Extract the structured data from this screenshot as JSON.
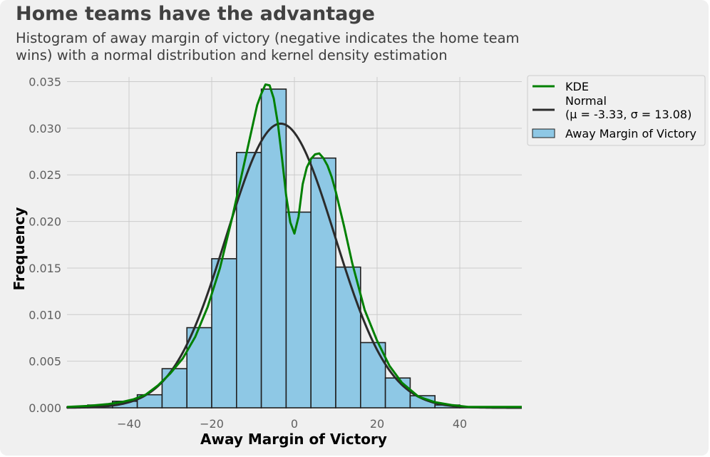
{
  "title": "Home teams have the advantage",
  "subtitle": "Histogram of away margin of victory (negative indicates the home team wins) with a normal distribution and kernel density estimation",
  "colors": {
    "background": "#f0f0f0",
    "bar_fill": "#8ec8e5",
    "bar_edge": "#202020",
    "kde": "#008000",
    "normal": "#2b2b2b",
    "grid": "#cbcbcb"
  },
  "chart_data": {
    "type": "bar",
    "title": "Home teams have the advantage",
    "subtitle": "Histogram of away margin of victory (negative indicates the home team wins) with a normal distribution and kernel density estimation",
    "xlabel": "Away Margin of Victory",
    "ylabel": "Frequency",
    "xlim": [
      -55,
      55
    ],
    "ylim": [
      0,
      0.0355
    ],
    "xticks": [
      -40,
      -20,
      0,
      20,
      40
    ],
    "xtick_labels": [
      "−40",
      "−20",
      "0",
      "20",
      "40"
    ],
    "yticks": [
      0.0,
      0.005,
      0.01,
      0.015,
      0.02,
      0.025,
      0.03,
      0.035
    ],
    "ytick_labels": [
      "0.000",
      "0.005",
      "0.010",
      "0.015",
      "0.020",
      "0.025",
      "0.030",
      "0.035"
    ],
    "grid": true,
    "legend_position": "outside-top-right",
    "bin_edges": [
      -56,
      -50,
      -44,
      -38,
      -32,
      -26,
      -20,
      -14,
      -8,
      -2,
      4,
      10,
      16,
      22,
      28,
      34,
      40,
      46
    ],
    "histogram": {
      "name": "Away Margin of Victory",
      "values": [
        0.0001,
        0.0003,
        0.0007,
        0.0014,
        0.0042,
        0.0086,
        0.016,
        0.0274,
        0.0342,
        0.021,
        0.0268,
        0.0151,
        0.007,
        0.0032,
        0.0013,
        0.0003,
        0.0001
      ]
    },
    "series": [
      {
        "name": "KDE",
        "type": "line",
        "x": [
          -55,
          -50,
          -45,
          -42,
          -39,
          -36,
          -33,
          -30,
          -27,
          -24,
          -21,
          -18,
          -15,
          -12,
          -10,
          -9,
          -8,
          -7,
          -6,
          -5,
          -4,
          -3,
          -2,
          -1,
          0,
          1,
          2,
          3,
          4,
          5,
          6,
          7,
          8,
          9,
          10,
          12,
          14,
          17,
          20,
          23,
          26,
          30,
          34,
          38,
          42,
          46,
          50,
          55
        ],
        "y": [
          0.0001,
          0.0002,
          0.0004,
          0.0006,
          0.0009,
          0.0014,
          0.0024,
          0.0037,
          0.0053,
          0.0076,
          0.0108,
          0.015,
          0.0205,
          0.0265,
          0.0305,
          0.0325,
          0.0337,
          0.0347,
          0.0346,
          0.0332,
          0.0305,
          0.0268,
          0.0228,
          0.0199,
          0.0187,
          0.0205,
          0.024,
          0.0258,
          0.0267,
          0.0272,
          0.0273,
          0.0268,
          0.026,
          0.0248,
          0.0232,
          0.0195,
          0.0155,
          0.0105,
          0.0072,
          0.0045,
          0.0027,
          0.0012,
          0.0006,
          0.0003,
          0.0001,
          0.0001,
          0.0001,
          0.0001
        ]
      },
      {
        "name": "Normal\n(μ = -3.33, σ = 13.08)",
        "type": "line",
        "mu": -3.33,
        "sigma": 13.08
      }
    ],
    "legend": [
      {
        "kind": "line",
        "key": "kde",
        "label": "KDE"
      },
      {
        "kind": "line",
        "key": "normal",
        "label_line1": "Normal",
        "label_line2": "(μ = -3.33, σ = 13.08)"
      },
      {
        "kind": "patch",
        "key": "hist",
        "label": "Away Margin of Victory"
      }
    ]
  }
}
